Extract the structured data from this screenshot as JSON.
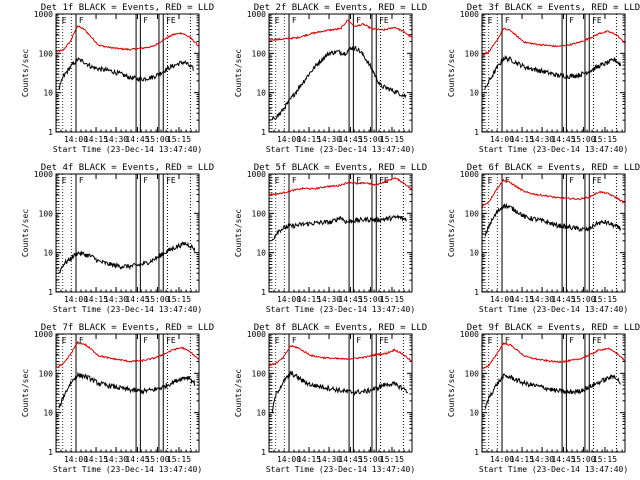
{
  "figure": {
    "y_label": "Counts/sec",
    "x_label": "Start Time (23-Dec-14 13:47:40)"
  },
  "chart_data": {
    "type": "line",
    "y_scale": "log",
    "ylim": [
      1,
      1000
    ],
    "y_ticks": [
      "1",
      "10",
      "100",
      "1000"
    ],
    "x_ticks": [
      "14:00",
      "14:15",
      "14:30",
      "14:45",
      "15:00",
      "15:15"
    ],
    "series_names": [
      "Events",
      "LLD"
    ],
    "series_colors": {
      "Events": "#000000",
      "LLD": "#dd0000"
    },
    "panels": [
      {
        "title": "Det 1f BLACK = Events, RED = LLD",
        "markers": [
          "E",
          "F",
          "F",
          "FE"
        ],
        "has_lld": true,
        "events": [
          [
            0.02,
            12
          ],
          [
            0.05,
            25
          ],
          [
            0.1,
            45
          ],
          [
            0.15,
            70
          ],
          [
            0.2,
            60
          ],
          [
            0.25,
            45
          ],
          [
            0.3,
            40
          ],
          [
            0.38,
            36
          ],
          [
            0.45,
            30
          ],
          [
            0.52,
            24
          ],
          [
            0.6,
            22
          ],
          [
            0.68,
            25
          ],
          [
            0.72,
            30
          ],
          [
            0.8,
            45
          ],
          [
            0.86,
            55
          ],
          [
            0.9,
            60
          ],
          [
            0.96,
            40
          ]
        ],
        "lld": [
          [
            0,
            110
          ],
          [
            0.05,
            120
          ],
          [
            0.1,
            200
          ],
          [
            0.15,
            500
          ],
          [
            0.2,
            400
          ],
          [
            0.25,
            250
          ],
          [
            0.3,
            160
          ],
          [
            0.38,
            140
          ],
          [
            0.45,
            130
          ],
          [
            0.52,
            125
          ],
          [
            0.6,
            135
          ],
          [
            0.68,
            150
          ],
          [
            0.75,
            220
          ],
          [
            0.82,
            300
          ],
          [
            0.88,
            330
          ],
          [
            0.94,
            250
          ],
          [
            1,
            150
          ]
        ]
      },
      {
        "title": "Det 2f BLACK = Events, RED = LLD",
        "markers": [
          "E",
          "F",
          "F",
          "FE"
        ],
        "has_lld": true,
        "events": [
          [
            0.02,
            2
          ],
          [
            0.08,
            3
          ],
          [
            0.14,
            6
          ],
          [
            0.2,
            12
          ],
          [
            0.28,
            30
          ],
          [
            0.35,
            60
          ],
          [
            0.42,
            100
          ],
          [
            0.48,
            110
          ],
          [
            0.53,
            100
          ],
          [
            0.58,
            140
          ],
          [
            0.62,
            130
          ],
          [
            0.66,
            90
          ],
          [
            0.72,
            40
          ],
          [
            0.78,
            15
          ],
          [
            0.85,
            12
          ],
          [
            0.9,
            10
          ],
          [
            0.96,
            8
          ]
        ],
        "lld": [
          [
            0,
            220
          ],
          [
            0.1,
            230
          ],
          [
            0.2,
            250
          ],
          [
            0.3,
            320
          ],
          [
            0.4,
            380
          ],
          [
            0.5,
            420
          ],
          [
            0.55,
            700
          ],
          [
            0.6,
            480
          ],
          [
            0.66,
            550
          ],
          [
            0.72,
            420
          ],
          [
            0.8,
            390
          ],
          [
            0.88,
            460
          ],
          [
            0.94,
            360
          ],
          [
            1,
            250
          ]
        ]
      },
      {
        "title": "Det 3f BLACK = Events, RED = LLD",
        "markers": [
          "E",
          "F",
          "F",
          "FE"
        ],
        "has_lld": true,
        "events": [
          [
            0.02,
            12
          ],
          [
            0.05,
            20
          ],
          [
            0.1,
            40
          ],
          [
            0.15,
            75
          ],
          [
            0.2,
            70
          ],
          [
            0.25,
            55
          ],
          [
            0.3,
            45
          ],
          [
            0.38,
            38
          ],
          [
            0.45,
            33
          ],
          [
            0.52,
            28
          ],
          [
            0.6,
            26
          ],
          [
            0.68,
            28
          ],
          [
            0.75,
            35
          ],
          [
            0.82,
            48
          ],
          [
            0.88,
            58
          ],
          [
            0.93,
            70
          ],
          [
            0.97,
            50
          ]
        ],
        "lld": [
          [
            0,
            90
          ],
          [
            0.05,
            110
          ],
          [
            0.1,
            200
          ],
          [
            0.15,
            420
          ],
          [
            0.2,
            380
          ],
          [
            0.25,
            260
          ],
          [
            0.3,
            190
          ],
          [
            0.38,
            170
          ],
          [
            0.45,
            160
          ],
          [
            0.52,
            150
          ],
          [
            0.6,
            160
          ],
          [
            0.68,
            190
          ],
          [
            0.75,
            240
          ],
          [
            0.82,
            320
          ],
          [
            0.88,
            360
          ],
          [
            0.94,
            300
          ],
          [
            1,
            180
          ]
        ]
      },
      {
        "title": "Det 4f BLACK = Events, RED = LLD",
        "markers": [
          "E",
          "F",
          "F",
          "FE"
        ],
        "has_lld": false,
        "events": [
          [
            0.02,
            3
          ],
          [
            0.05,
            5
          ],
          [
            0.1,
            7
          ],
          [
            0.15,
            10
          ],
          [
            0.2,
            9
          ],
          [
            0.25,
            8
          ],
          [
            0.3,
            6
          ],
          [
            0.38,
            5
          ],
          [
            0.45,
            4.5
          ],
          [
            0.52,
            4.5
          ],
          [
            0.6,
            5
          ],
          [
            0.66,
            6
          ],
          [
            0.72,
            8
          ],
          [
            0.78,
            11
          ],
          [
            0.84,
            14
          ],
          [
            0.9,
            17
          ],
          [
            0.94,
            15
          ],
          [
            0.97,
            12
          ]
        ],
        "lld": []
      },
      {
        "title": "Det 5f BLACK = Events, RED = LLD",
        "markers": [
          "E",
          "F",
          "F",
          "FE"
        ],
        "has_lld": true,
        "events": [
          [
            0.02,
            20
          ],
          [
            0.06,
            35
          ],
          [
            0.12,
            45
          ],
          [
            0.2,
            50
          ],
          [
            0.28,
            55
          ],
          [
            0.36,
            58
          ],
          [
            0.44,
            60
          ],
          [
            0.5,
            80
          ],
          [
            0.54,
            60
          ],
          [
            0.6,
            65
          ],
          [
            0.68,
            70
          ],
          [
            0.75,
            68
          ],
          [
            0.82,
            72
          ],
          [
            0.9,
            80
          ],
          [
            0.96,
            70
          ]
        ],
        "lld": [
          [
            0,
            300
          ],
          [
            0.08,
            320
          ],
          [
            0.16,
            380
          ],
          [
            0.24,
            430
          ],
          [
            0.32,
            420
          ],
          [
            0.4,
            480
          ],
          [
            0.48,
            500
          ],
          [
            0.56,
            620
          ],
          [
            0.62,
            560
          ],
          [
            0.68,
            600
          ],
          [
            0.74,
            520
          ],
          [
            0.82,
            650
          ],
          [
            0.88,
            800
          ],
          [
            0.94,
            600
          ],
          [
            1,
            400
          ]
        ]
      },
      {
        "title": "Det 6f BLACK = Events, RED = LLD",
        "markers": [
          "E",
          "F",
          "F",
          "FE"
        ],
        "has_lld": true,
        "events": [
          [
            0.02,
            25
          ],
          [
            0.05,
            50
          ],
          [
            0.1,
            100
          ],
          [
            0.15,
            160
          ],
          [
            0.2,
            140
          ],
          [
            0.25,
            110
          ],
          [
            0.3,
            80
          ],
          [
            0.38,
            70
          ],
          [
            0.45,
            60
          ],
          [
            0.52,
            50
          ],
          [
            0.6,
            45
          ],
          [
            0.68,
            40
          ],
          [
            0.74,
            38
          ],
          [
            0.8,
            55
          ],
          [
            0.86,
            60
          ],
          [
            0.92,
            50
          ],
          [
            0.97,
            40
          ]
        ],
        "lld": [
          [
            0,
            150
          ],
          [
            0.05,
            200
          ],
          [
            0.1,
            400
          ],
          [
            0.15,
            700
          ],
          [
            0.2,
            600
          ],
          [
            0.25,
            450
          ],
          [
            0.3,
            350
          ],
          [
            0.38,
            300
          ],
          [
            0.45,
            280
          ],
          [
            0.52,
            250
          ],
          [
            0.6,
            240
          ],
          [
            0.68,
            230
          ],
          [
            0.75,
            260
          ],
          [
            0.82,
            350
          ],
          [
            0.88,
            320
          ],
          [
            0.94,
            250
          ],
          [
            1,
            180
          ]
        ]
      },
      {
        "title": "Det 7f BLACK = Events, RED = LLD",
        "markers": [
          "E",
          "F",
          "F",
          "FE"
        ],
        "has_lld": true,
        "events": [
          [
            0.02,
            12
          ],
          [
            0.05,
            25
          ],
          [
            0.1,
            55
          ],
          [
            0.15,
            90
          ],
          [
            0.2,
            85
          ],
          [
            0.25,
            70
          ],
          [
            0.3,
            55
          ],
          [
            0.38,
            48
          ],
          [
            0.45,
            42
          ],
          [
            0.52,
            38
          ],
          [
            0.6,
            35
          ],
          [
            0.68,
            38
          ],
          [
            0.75,
            45
          ],
          [
            0.82,
            60
          ],
          [
            0.88,
            75
          ],
          [
            0.93,
            80
          ],
          [
            0.97,
            55
          ]
        ],
        "lld": [
          [
            0,
            140
          ],
          [
            0.05,
            170
          ],
          [
            0.1,
            300
          ],
          [
            0.15,
            600
          ],
          [
            0.2,
            550
          ],
          [
            0.25,
            400
          ],
          [
            0.3,
            280
          ],
          [
            0.38,
            240
          ],
          [
            0.45,
            220
          ],
          [
            0.52,
            200
          ],
          [
            0.6,
            210
          ],
          [
            0.68,
            240
          ],
          [
            0.75,
            300
          ],
          [
            0.82,
            400
          ],
          [
            0.88,
            450
          ],
          [
            0.94,
            350
          ],
          [
            1,
            220
          ]
        ]
      },
      {
        "title": "Det 8f BLACK = Events, RED = LLD",
        "markers": [
          "E",
          "F",
          "F",
          "FE"
        ],
        "has_lld": true,
        "events": [
          [
            0.02,
            10
          ],
          [
            0.05,
            30
          ],
          [
            0.1,
            60
          ],
          [
            0.15,
            100
          ],
          [
            0.2,
            80
          ],
          [
            0.25,
            60
          ],
          [
            0.3,
            50
          ],
          [
            0.38,
            45
          ],
          [
            0.45,
            40
          ],
          [
            0.52,
            35
          ],
          [
            0.6,
            33
          ],
          [
            0.68,
            35
          ],
          [
            0.74,
            40
          ],
          [
            0.8,
            50
          ],
          [
            0.86,
            55
          ],
          [
            0.92,
            45
          ],
          [
            0.97,
            35
          ]
        ],
        "lld": [
          [
            0,
            160
          ],
          [
            0.05,
            180
          ],
          [
            0.1,
            250
          ],
          [
            0.15,
            500
          ],
          [
            0.2,
            450
          ],
          [
            0.25,
            350
          ],
          [
            0.3,
            280
          ],
          [
            0.38,
            250
          ],
          [
            0.45,
            240
          ],
          [
            0.52,
            230
          ],
          [
            0.6,
            240
          ],
          [
            0.68,
            260
          ],
          [
            0.75,
            300
          ],
          [
            0.82,
            320
          ],
          [
            0.88,
            400
          ],
          [
            0.94,
            300
          ],
          [
            1,
            200
          ]
        ]
      },
      {
        "title": "Det 9f BLACK = Events, RED = LLD",
        "markers": [
          "E",
          "F",
          "F",
          "FE"
        ],
        "has_lld": true,
        "events": [
          [
            0.02,
            12
          ],
          [
            0.05,
            25
          ],
          [
            0.1,
            50
          ],
          [
            0.15,
            85
          ],
          [
            0.2,
            80
          ],
          [
            0.25,
            65
          ],
          [
            0.3,
            55
          ],
          [
            0.38,
            48
          ],
          [
            0.45,
            42
          ],
          [
            0.52,
            36
          ],
          [
            0.6,
            33
          ],
          [
            0.68,
            35
          ],
          [
            0.75,
            45
          ],
          [
            0.82,
            60
          ],
          [
            0.88,
            75
          ],
          [
            0.93,
            85
          ],
          [
            0.97,
            55
          ]
        ],
        "lld": [
          [
            0,
            130
          ],
          [
            0.05,
            160
          ],
          [
            0.1,
            300
          ],
          [
            0.15,
            580
          ],
          [
            0.2,
            520
          ],
          [
            0.25,
            380
          ],
          [
            0.3,
            270
          ],
          [
            0.38,
            230
          ],
          [
            0.45,
            210
          ],
          [
            0.52,
            195
          ],
          [
            0.6,
            205
          ],
          [
            0.68,
            230
          ],
          [
            0.75,
            290
          ],
          [
            0.82,
            390
          ],
          [
            0.88,
            430
          ],
          [
            0.94,
            330
          ],
          [
            1,
            210
          ]
        ]
      }
    ]
  }
}
